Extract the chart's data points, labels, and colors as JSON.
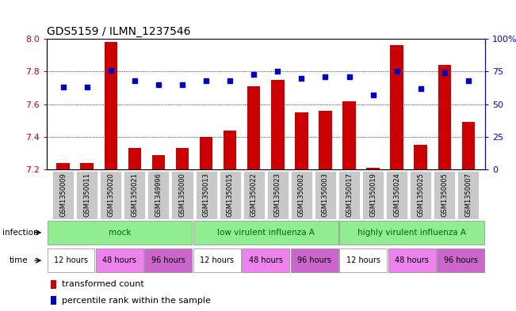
{
  "title": "GDS5159 / ILMN_1237546",
  "samples": [
    "GSM1350009",
    "GSM1350011",
    "GSM1350020",
    "GSM1350021",
    "GSM1349996",
    "GSM1350000",
    "GSM1350013",
    "GSM1350015",
    "GSM1350022",
    "GSM1350023",
    "GSM1350002",
    "GSM1350003",
    "GSM1350017",
    "GSM1350019",
    "GSM1350024",
    "GSM1350025",
    "GSM1350005",
    "GSM1350007"
  ],
  "bar_values": [
    7.24,
    7.24,
    7.98,
    7.33,
    7.29,
    7.33,
    7.4,
    7.44,
    7.71,
    7.75,
    7.55,
    7.56,
    7.62,
    7.21,
    7.96,
    7.35,
    7.84,
    7.49
  ],
  "dot_values": [
    63,
    63,
    76,
    68,
    65,
    65,
    68,
    68,
    73,
    75,
    70,
    71,
    71,
    57,
    75,
    62,
    74,
    68
  ],
  "ylim": [
    7.2,
    8.0
  ],
  "yticks": [
    7.2,
    7.4,
    7.6,
    7.8,
    8.0
  ],
  "y2lim": [
    0,
    100
  ],
  "y2ticks": [
    0,
    25,
    50,
    75,
    100
  ],
  "bar_color": "#CC0000",
  "dot_color": "#0000CC",
  "bar_baseline": 7.2,
  "bg_color": "#FFFFFF",
  "tick_color_left": "#CC0000",
  "tick_color_right": "#0000CC",
  "grid_yticks": [
    7.4,
    7.6,
    7.8
  ],
  "infection_groups": [
    {
      "label": "mock",
      "start": 0,
      "end": 6
    },
    {
      "label": "low virulent influenza A",
      "start": 6,
      "end": 12
    },
    {
      "label": "highly virulent influenza A",
      "start": 12,
      "end": 18
    }
  ],
  "infection_color": "#90EE90",
  "time_groups": [
    {
      "label": "12 hours",
      "start": 0,
      "end": 2,
      "color": "#FFFFFF"
    },
    {
      "label": "48 hours",
      "start": 2,
      "end": 4,
      "color": "#EE82EE"
    },
    {
      "label": "96 hours",
      "start": 4,
      "end": 6,
      "color": "#CC66CC"
    },
    {
      "label": "12 hours",
      "start": 6,
      "end": 8,
      "color": "#FFFFFF"
    },
    {
      "label": "48 hours",
      "start": 8,
      "end": 10,
      "color": "#EE82EE"
    },
    {
      "label": "96 hours",
      "start": 10,
      "end": 12,
      "color": "#CC66CC"
    },
    {
      "label": "12 hours",
      "start": 12,
      "end": 14,
      "color": "#FFFFFF"
    },
    {
      "label": "48 hours",
      "start": 14,
      "end": 16,
      "color": "#EE82EE"
    },
    {
      "label": "96 hours",
      "start": 16,
      "end": 18,
      "color": "#CC66CC"
    }
  ],
  "sample_bg_color": "#C8C8C8",
  "legend_items": [
    {
      "label": "transformed count",
      "color": "#CC0000"
    },
    {
      "label": "percentile rank within the sample",
      "color": "#0000CC"
    }
  ]
}
